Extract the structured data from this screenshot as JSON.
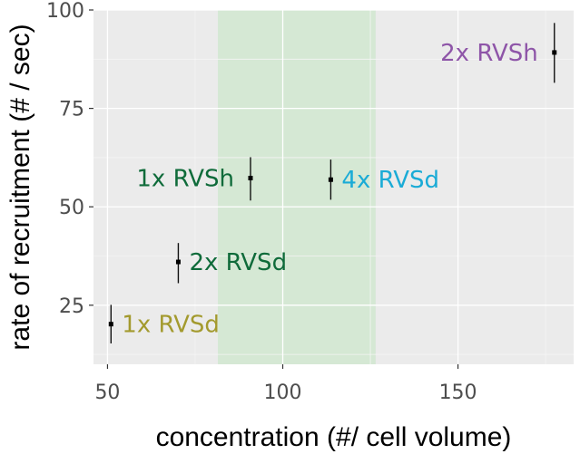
{
  "chart_data": {
    "type": "scatter",
    "xlabel": "concentration (#/ cell volume)",
    "ylabel": "rate of recruitment (# / sec)",
    "xlim": [
      46,
      183
    ],
    "ylim": [
      10,
      100
    ],
    "xticks": [
      50,
      100,
      150
    ],
    "yticks": [
      25,
      50,
      75,
      100
    ],
    "grid": true,
    "background": "#ebebeb",
    "highlight_band": {
      "x": [
        81.5,
        126.5
      ],
      "color": "#d5e8d4"
    },
    "points": [
      {
        "label": "1x RVSd",
        "x": 51,
        "y": 20.2,
        "err": [
          15.3,
          25.1
        ],
        "color": "#a39a2e",
        "label_side": "right"
      },
      {
        "label": "2x RVSd",
        "x": 70.2,
        "y": 36.0,
        "err": [
          30.6,
          40.8
        ],
        "color": "#0f6b3a",
        "label_side": "right"
      },
      {
        "label": "1x RVSh",
        "x": 90.8,
        "y": 57.3,
        "err": [
          51.6,
          62.6
        ],
        "color": "#0f6b3a",
        "label_side": "left"
      },
      {
        "label": "4x RVSd",
        "x": 113.7,
        "y": 56.9,
        "err": [
          51.8,
          62.0
        ],
        "color": "#1aabd6",
        "label_side": "right"
      },
      {
        "label": "2x RVSh",
        "x": 177.5,
        "y": 89.2,
        "err": [
          81.5,
          96.7
        ],
        "color": "#8e55a8",
        "label_side": "left"
      }
    ]
  }
}
